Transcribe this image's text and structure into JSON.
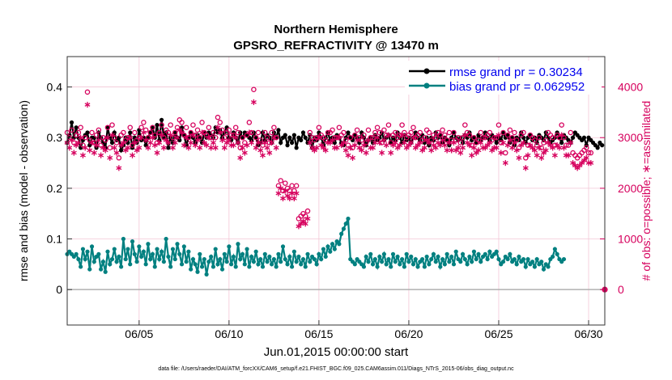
{
  "chart_data": {
    "type": "line",
    "title": "Northern Hemisphere",
    "subtitle": "GPSRO_REFRACTIVITY @ 13470 m",
    "xlabel": "Jun.01,2015 00:00:00 start",
    "ylabel": "rmse and bias (model - observation)",
    "ylabel_right": "# of obs: o=possible; ∗=assimilated",
    "xlim": [
      1,
      30.9
    ],
    "ylim": [
      -0.07,
      0.46
    ],
    "ylim_right": [
      -700,
      4600
    ],
    "x_ticks": [
      5,
      10,
      15,
      20,
      25,
      30
    ],
    "x_tick_labels": [
      "06/05",
      "06/10",
      "06/15",
      "06/20",
      "06/25",
      "06/30"
    ],
    "y_ticks": [
      0,
      0.1,
      0.2,
      0.3,
      0.4
    ],
    "y_tick_labels": [
      "0",
      "0.1",
      "0.2",
      "0.3",
      "0.4"
    ],
    "y_ticks_right": [
      0,
      1000,
      2000,
      3000,
      4000
    ],
    "y_tick_labels_right": [
      "0",
      "1000",
      "2000",
      "3000",
      "4000"
    ],
    "x_step_days": 0.125,
    "grid": true,
    "legend_position": "top-right",
    "series": [
      {
        "name": "rmse grand pr = 0.30234",
        "color": "#000000",
        "axis": "left",
        "marker": "dot",
        "values": [
          0.29,
          0.305,
          0.33,
          0.3,
          0.32,
          0.3,
          0.28,
          0.295,
          0.305,
          0.31,
          0.285,
          0.3,
          0.3,
          0.28,
          0.31,
          0.3,
          0.29,
          0.28,
          0.32,
          0.3,
          0.29,
          0.31,
          0.295,
          0.3,
          0.275,
          0.285,
          0.3,
          0.29,
          0.31,
          0.28,
          0.3,
          0.29,
          0.315,
          0.295,
          0.3,
          0.285,
          0.3,
          0.31,
          0.32,
          0.3,
          0.325,
          0.295,
          0.335,
          0.3,
          0.31,
          0.28,
          0.3,
          0.29,
          0.31,
          0.3,
          0.295,
          0.32,
          0.305,
          0.285,
          0.3,
          0.31,
          0.3,
          0.29,
          0.305,
          0.3,
          0.29,
          0.31,
          0.3,
          0.31,
          0.305,
          0.3,
          0.32,
          0.31,
          0.315,
          0.3,
          0.31,
          0.32,
          0.3,
          0.295,
          0.31,
          0.3,
          0.29,
          0.31,
          0.3,
          0.31,
          0.305,
          0.3,
          0.295,
          0.31,
          0.3,
          0.285,
          0.29,
          0.31,
          0.295,
          0.305,
          0.3,
          0.29,
          0.31,
          0.3,
          0.315,
          0.29,
          0.3,
          0.305,
          0.285,
          0.3,
          0.29,
          0.305,
          0.28,
          0.3,
          0.295,
          0.31,
          0.3,
          0.29,
          0.305,
          0.28,
          0.3,
          0.295,
          0.31,
          0.3,
          0.285,
          0.3,
          0.31,
          0.295,
          0.3,
          0.29,
          0.305,
          0.3,
          0.29,
          0.285,
          0.3,
          0.31,
          0.3,
          0.295,
          0.305,
          0.3,
          0.29,
          0.31,
          0.3,
          0.285,
          0.295,
          0.3,
          0.29,
          0.305,
          0.295,
          0.3,
          0.31,
          0.295,
          0.3,
          0.305,
          0.29,
          0.3,
          0.295,
          0.31,
          0.3,
          0.29,
          0.305,
          0.295,
          0.3,
          0.29,
          0.3,
          0.31,
          0.3,
          0.295,
          0.305,
          0.29,
          0.3,
          0.285,
          0.3,
          0.295,
          0.31,
          0.3,
          0.305,
          0.29,
          0.3,
          0.295,
          0.285,
          0.3,
          0.31,
          0.3,
          0.295,
          0.3,
          0.29,
          0.305,
          0.3,
          0.31,
          0.295,
          0.3,
          0.29,
          0.305,
          0.295,
          0.3,
          0.31,
          0.3,
          0.295,
          0.305,
          0.3,
          0.29,
          0.3,
          0.295,
          0.31,
          0.3,
          0.305,
          0.29,
          0.3,
          0.285,
          0.3,
          0.295,
          0.31,
          0.3,
          0.29,
          0.3,
          0.305,
          0.295,
          0.3,
          0.29,
          0.305,
          0.3,
          0.295,
          0.31,
          0.3,
          0.29,
          0.295,
          0.3,
          0.31,
          0.3,
          0.29,
          0.305,
          0.3,
          0.295,
          0.29,
          0.3,
          0.31,
          0.305,
          0.3,
          0.295,
          0.3,
          0.285,
          0.3,
          0.295,
          0.29,
          0.285,
          0.28,
          0.29,
          0.285
        ]
      },
      {
        "name": "bias grand pr = 0.062952",
        "color": "#008080",
        "axis": "left",
        "marker": "dot",
        "values": [
          0.07,
          0.075,
          0.07,
          0.065,
          0.07,
          0.06,
          0.045,
          0.08,
          0.06,
          0.075,
          0.04,
          0.085,
          0.055,
          0.065,
          0.07,
          0.04,
          0.055,
          0.035,
          0.075,
          0.05,
          0.06,
          0.08,
          0.055,
          0.065,
          0.045,
          0.1,
          0.06,
          0.08,
          0.05,
          0.095,
          0.07,
          0.055,
          0.085,
          0.065,
          0.075,
          0.05,
          0.09,
          0.06,
          0.07,
          0.045,
          0.08,
          0.06,
          0.075,
          0.055,
          0.1,
          0.065,
          0.045,
          0.08,
          0.06,
          0.09,
          0.07,
          0.05,
          0.085,
          0.055,
          0.075,
          0.04,
          0.06,
          0.05,
          0.035,
          0.07,
          0.045,
          0.06,
          0.03,
          0.055,
          0.065,
          0.045,
          0.08,
          0.05,
          0.06,
          0.04,
          0.07,
          0.055,
          0.085,
          0.05,
          0.065,
          0.045,
          0.09,
          0.06,
          0.07,
          0.05,
          0.08,
          0.045,
          0.065,
          0.055,
          0.075,
          0.05,
          0.06,
          0.045,
          0.07,
          0.055,
          0.065,
          0.05,
          0.06,
          0.045,
          0.07,
          0.055,
          0.085,
          0.06,
          0.05,
          0.065,
          0.045,
          0.075,
          0.055,
          0.065,
          0.05,
          0.06,
          0.045,
          0.07,
          0.055,
          0.065,
          0.06,
          0.05,
          0.07,
          0.06,
          0.08,
          0.065,
          0.085,
          0.075,
          0.09,
          0.08,
          0.095,
          0.09,
          0.11,
          0.12,
          0.13,
          0.14,
          0.06,
          0.055,
          0.05,
          0.06,
          0.055,
          0.05,
          0.045,
          0.065,
          0.055,
          0.07,
          0.05,
          0.06,
          0.045,
          0.065,
          0.055,
          0.07,
          0.05,
          0.06,
          0.045,
          0.07,
          0.055,
          0.065,
          0.05,
          0.06,
          0.045,
          0.07,
          0.055,
          0.065,
          0.05,
          0.06,
          0.045,
          0.055,
          0.06,
          0.045,
          0.065,
          0.05,
          0.06,
          0.07,
          0.055,
          0.065,
          0.045,
          0.06,
          0.05,
          0.07,
          0.055,
          0.065,
          0.05,
          0.075,
          0.06,
          0.055,
          0.07,
          0.06,
          0.05,
          0.065,
          0.055,
          0.075,
          0.06,
          0.07,
          0.055,
          0.065,
          0.07,
          0.06,
          0.075,
          0.065,
          0.07,
          0.075,
          0.06,
          0.05,
          0.055,
          0.065,
          0.06,
          0.07,
          0.055,
          0.06,
          0.05,
          0.065,
          0.055,
          0.06,
          0.045,
          0.06,
          0.05,
          0.055,
          0.045,
          0.06,
          0.05,
          0.055,
          0.04,
          0.05,
          0.045,
          0.06,
          0.065,
          0.08,
          0.07,
          0.06,
          0.055,
          0.06
        ]
      },
      {
        "name": "possible obs",
        "color": "#d6005d",
        "axis": "right",
        "marker": "circle",
        "values": [
          3100,
          3000,
          3150,
          2900,
          3050,
          3100,
          3200,
          2850,
          3000,
          3900,
          2950,
          3100,
          2900,
          3050,
          3150,
          2850,
          3000,
          2950,
          3200,
          2800,
          3250,
          3000,
          2900,
          2600,
          3050,
          3100,
          2950,
          3000,
          3200,
          2850,
          3100,
          2950,
          3000,
          3200,
          3300,
          3150,
          3000,
          3100,
          3200,
          3050,
          2900,
          3100,
          3250,
          3000,
          3150,
          3100,
          3250,
          3000,
          3100,
          3200,
          3350,
          3300,
          3050,
          3200,
          3000,
          3100,
          3250,
          3050,
          3150,
          3000,
          3300,
          3100,
          3050,
          3200,
          3000,
          3100,
          3000,
          3400,
          3300,
          3150,
          3000,
          3100,
          3150,
          3050,
          3050,
          3200,
          3100,
          2800,
          3000,
          2900,
          3050,
          3300,
          3100,
          3950,
          3000,
          3100,
          2950,
          2850,
          3100,
          3000,
          2900,
          3100,
          3200,
          3000,
          2050,
          2150,
          1950,
          2100,
          2000,
          1950,
          2050,
          1950,
          2050,
          1400,
          1450,
          1500,
          1450,
          1550,
          3100,
          3000,
          2950,
          3000,
          3200,
          3050,
          3000,
          2950,
          3100,
          3100,
          3150,
          3000,
          3000,
          3200,
          3050,
          3100,
          2950,
          2850,
          3000,
          2800,
          3050,
          3150,
          3000,
          2950,
          3050,
          2900,
          3150,
          3000,
          3000,
          3100,
          3200,
          3100,
          2900,
          3150,
          3050,
          3250,
          2900,
          3050,
          3100,
          3000,
          3050,
          3250,
          3100,
          3000,
          3050,
          3100,
          3200,
          3000,
          3050,
          3100,
          2950,
          3000,
          3150,
          3100,
          2950,
          3050,
          3000,
          3100,
          3050,
          3150,
          3050,
          2950,
          3100,
          2950,
          3100,
          2950,
          3000,
          2900,
          3000,
          3250,
          3100,
          3050,
          2850,
          3000,
          2900,
          2950,
          3100,
          3000,
          3000,
          3050,
          3100,
          2950,
          3000,
          3000,
          3250,
          2900,
          3100,
          2700,
          3050,
          3150,
          3000,
          3100,
          2950,
          2800,
          3050,
          3100,
          2600,
          2850,
          3050,
          3000,
          2950,
          2850,
          3000,
          2800,
          2900,
          2950,
          3100,
          3050,
          3000,
          2850,
          3050,
          3000,
          3250,
          3000,
          2850,
          2850,
          3100,
          2700,
          2650,
          2600,
          2650,
          2700,
          2750,
          2800,
          2700,
          2700
        ]
      },
      {
        "name": "assimilated obs",
        "color": "#d6005d",
        "axis": "right",
        "marker": "asterisk",
        "values": [
          2900,
          2800,
          2950,
          2700,
          2850,
          2900,
          3000,
          2650,
          2800,
          3650,
          2750,
          2900,
          2700,
          2850,
          2950,
          2650,
          2800,
          2750,
          3000,
          2600,
          3050,
          2800,
          2700,
          2400,
          2850,
          2900,
          2750,
          2800,
          3000,
          2650,
          2900,
          2750,
          2800,
          3000,
          3100,
          2950,
          2800,
          2900,
          3000,
          2850,
          2700,
          2900,
          3050,
          2800,
          2950,
          2900,
          3050,
          2800,
          2900,
          3000,
          3150,
          3100,
          2850,
          3000,
          2800,
          2900,
          3050,
          2850,
          2950,
          2800,
          3100,
          2900,
          2850,
          3000,
          2800,
          2900,
          2800,
          3200,
          3100,
          2950,
          2800,
          2900,
          2950,
          2850,
          2850,
          3000,
          2900,
          2600,
          2800,
          2700,
          2850,
          3100,
          2900,
          3700,
          2800,
          2900,
          2750,
          2650,
          2900,
          2800,
          2700,
          2900,
          3000,
          2800,
          1900,
          2000,
          1800,
          1950,
          1850,
          1800,
          1900,
          1800,
          1900,
          1250,
          1300,
          1350,
          1300,
          1400,
          2900,
          2800,
          2750,
          2800,
          3000,
          2850,
          2800,
          2750,
          2900,
          2900,
          2950,
          2800,
          2800,
          3000,
          2850,
          2900,
          2750,
          2650,
          2800,
          2600,
          2850,
          2950,
          2800,
          2750,
          2850,
          2700,
          2950,
          2800,
          2800,
          2900,
          3000,
          2900,
          2700,
          2950,
          2850,
          3050,
          2700,
          2850,
          2900,
          2800,
          2850,
          3050,
          2900,
          2800,
          2850,
          2900,
          3000,
          2800,
          2850,
          2900,
          2750,
          2800,
          2950,
          2900,
          2750,
          2850,
          2800,
          2900,
          2850,
          2950,
          2850,
          2750,
          2900,
          2750,
          2900,
          2750,
          2800,
          2700,
          2800,
          3050,
          2900,
          2850,
          2650,
          2800,
          2700,
          2750,
          2900,
          2800,
          2800,
          2850,
          2900,
          2750,
          2800,
          2800,
          3050,
          2700,
          2900,
          2500,
          2850,
          2950,
          2800,
          2900,
          2750,
          2600,
          2850,
          2900,
          2400,
          2650,
          2850,
          2800,
          2750,
          2650,
          2800,
          2600,
          2700,
          2750,
          2900,
          2850,
          2800,
          2650,
          2850,
          2800,
          3050,
          2800,
          2650,
          2650,
          2900,
          2500,
          2450,
          2400,
          2450,
          2500,
          2550,
          2600,
          2500,
          2500
        ]
      }
    ],
    "annotation": "data file: /Users/raeder/DAI/ATM_forcXX/CAM6_setup/f.e21.FHIST_BGC.f09_025.CAM6assim.011/Diags_NTrS_2015-06/obs_diag_output.nc",
    "end_marker": {
      "x": 30.9,
      "value_right": 0
    }
  }
}
